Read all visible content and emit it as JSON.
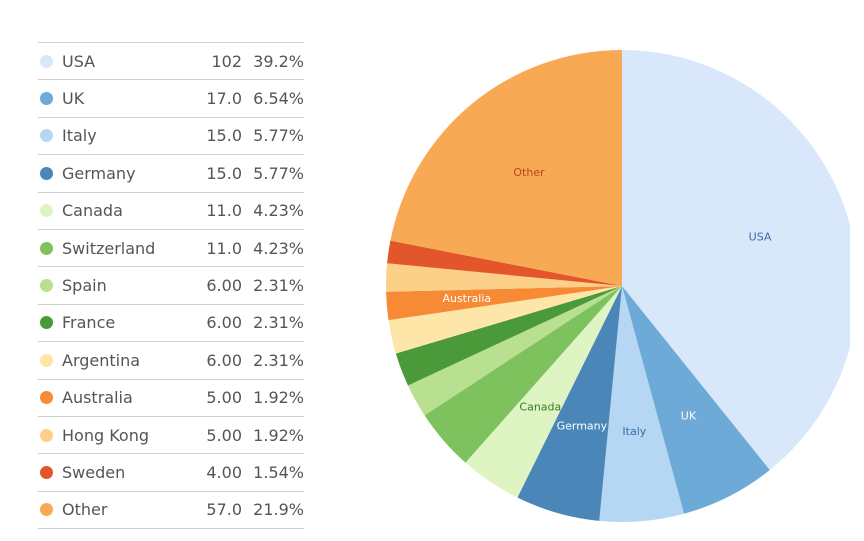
{
  "chart_data": {
    "type": "pie",
    "start_angle_deg": 0,
    "direction": "clockwise",
    "slices": [
      {
        "label": "USA",
        "value": 102,
        "value_text": "102",
        "percent_text": "39.2%",
        "color": "#d8e8fa",
        "label_color": "#3a6ea5",
        "show_label": true
      },
      {
        "label": "UK",
        "value": 17,
        "value_text": "17.0",
        "percent_text": "6.54%",
        "color": "#6daad8",
        "label_color": "#ffffff",
        "show_label": true
      },
      {
        "label": "Italy",
        "value": 15,
        "value_text": "15.0",
        "percent_text": "5.77%",
        "color": "#b5d7f3",
        "label_color": "#3a6ea5",
        "show_label": true
      },
      {
        "label": "Germany",
        "value": 15,
        "value_text": "15.0",
        "percent_text": "5.77%",
        "color": "#4a87b8",
        "label_color": "#ffffff",
        "show_label": true
      },
      {
        "label": "Canada",
        "value": 11,
        "value_text": "11.0",
        "percent_text": "4.23%",
        "color": "#def5c3",
        "label_color": "#3d7a2a",
        "show_label": true
      },
      {
        "label": "Switzerland",
        "value": 11,
        "value_text": "11.0",
        "percent_text": "4.23%",
        "color": "#7dc25d",
        "label_color": "#ffffff",
        "show_label": false
      },
      {
        "label": "Spain",
        "value": 6,
        "value_text": "6.00",
        "percent_text": "2.31%",
        "color": "#b8e090",
        "label_color": "#3d7a2a",
        "show_label": false
      },
      {
        "label": "France",
        "value": 6,
        "value_text": "6.00",
        "percent_text": "2.31%",
        "color": "#4a9a3a",
        "label_color": "#ffffff",
        "show_label": false
      },
      {
        "label": "Argentina",
        "value": 6,
        "value_text": "6.00",
        "percent_text": "2.31%",
        "color": "#fde6a8",
        "label_color": "#8a6a1a",
        "show_label": false
      },
      {
        "label": "Australia",
        "value": 5,
        "value_text": "5.00",
        "percent_text": "1.92%",
        "color": "#f78a34",
        "label_color": "#ffffff",
        "show_label": true
      },
      {
        "label": "Hong Kong",
        "value": 5,
        "value_text": "5.00",
        "percent_text": "1.92%",
        "color": "#fcd089",
        "label_color": "#8a5a1a",
        "show_label": false
      },
      {
        "label": "Sweden",
        "value": 4,
        "value_text": "4.00",
        "percent_text": "1.54%",
        "color": "#e3552a",
        "label_color": "#ffffff",
        "show_label": false
      },
      {
        "label": "Other",
        "value": 57,
        "value_text": "57.0",
        "percent_text": "21.9%",
        "color": "#f7a954",
        "label_color": "#b34a10",
        "show_label": true
      }
    ]
  }
}
